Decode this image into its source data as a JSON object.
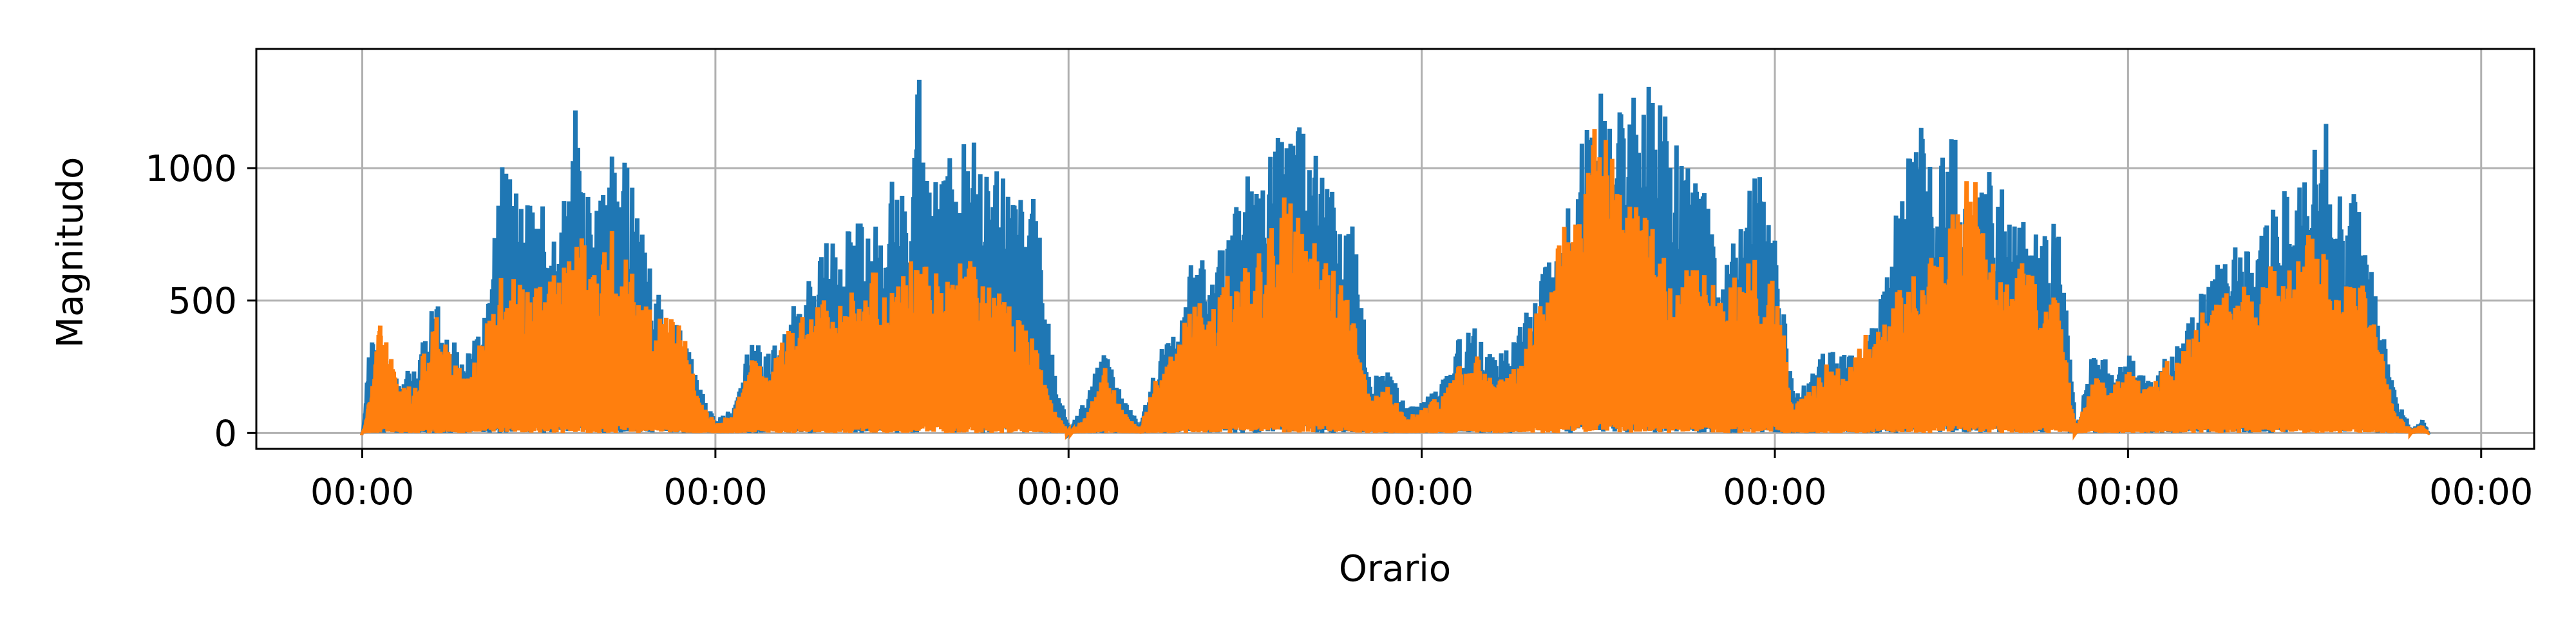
{
  "chart_data": {
    "type": "line",
    "xlabel": "Orario",
    "ylabel": "Magnitudo",
    "x_tick_labels": [
      "00:00",
      "00:00",
      "00:00",
      "00:00",
      "00:00",
      "00:00",
      "00:00"
    ],
    "y_ticks": [
      0,
      500,
      1000
    ],
    "y_tick_labels": [
      "0",
      "500",
      "1000"
    ],
    "xlim": [
      -0.3,
      6.15
    ],
    "ylim": [
      -60,
      1450
    ],
    "grid": true,
    "legend": "none",
    "colors": {
      "series_1": "#1f77b4",
      "series_2": "#ff7f0e"
    },
    "series": [
      {
        "color": "#1f77b4",
        "points": [
          [
            0.0,
            0
          ],
          [
            0.02,
            400
          ],
          [
            0.05,
            300
          ],
          [
            0.1,
            210
          ],
          [
            0.15,
            260
          ],
          [
            0.2,
            520
          ],
          [
            0.25,
            350
          ],
          [
            0.3,
            300
          ],
          [
            0.35,
            480
          ],
          [
            0.4,
            1100
          ],
          [
            0.45,
            850
          ],
          [
            0.5,
            900
          ],
          [
            0.55,
            700
          ],
          [
            0.6,
            1230
          ],
          [
            0.65,
            800
          ],
          [
            0.7,
            1050
          ],
          [
            0.75,
            1080
          ],
          [
            0.8,
            700
          ],
          [
            0.85,
            500
          ],
          [
            0.9,
            420
          ],
          [
            0.95,
            180
          ],
          [
            1.0,
            50
          ],
          [
            1.05,
            100
          ],
          [
            1.1,
            380
          ],
          [
            1.15,
            300
          ],
          [
            1.2,
            450
          ],
          [
            1.25,
            550
          ],
          [
            1.3,
            750
          ],
          [
            1.35,
            720
          ],
          [
            1.4,
            820
          ],
          [
            1.45,
            780
          ],
          [
            1.5,
            1000
          ],
          [
            1.55,
            800
          ],
          [
            1.57,
            1400
          ],
          [
            1.62,
            950
          ],
          [
            1.7,
            1150
          ],
          [
            1.75,
            1060
          ],
          [
            1.8,
            980
          ],
          [
            1.85,
            900
          ],
          [
            1.9,
            920
          ],
          [
            1.95,
            300
          ],
          [
            2.0,
            10
          ],
          [
            2.05,
            150
          ],
          [
            2.1,
            330
          ],
          [
            2.15,
            130
          ],
          [
            2.2,
            30
          ],
          [
            2.25,
            300
          ],
          [
            2.3,
            390
          ],
          [
            2.35,
            740
          ],
          [
            2.4,
            600
          ],
          [
            2.45,
            850
          ],
          [
            2.5,
            1000
          ],
          [
            2.55,
            1100
          ],
          [
            2.6,
            1220
          ],
          [
            2.65,
            1260
          ],
          [
            2.7,
            1100
          ],
          [
            2.75,
            880
          ],
          [
            2.8,
            850
          ],
          [
            2.85,
            200
          ],
          [
            2.9,
            260
          ],
          [
            2.95,
            100
          ],
          [
            3.0,
            120
          ],
          [
            3.05,
            200
          ],
          [
            3.1,
            360
          ],
          [
            3.15,
            400
          ],
          [
            3.2,
            280
          ],
          [
            3.25,
            330
          ],
          [
            3.3,
            530
          ],
          [
            3.35,
            640
          ],
          [
            3.4,
            780
          ],
          [
            3.45,
            1100
          ],
          [
            3.5,
            1300
          ],
          [
            3.55,
            1280
          ],
          [
            3.6,
            1390
          ],
          [
            3.65,
            1300
          ],
          [
            3.7,
            1200
          ],
          [
            3.75,
            1030
          ],
          [
            3.8,
            900
          ],
          [
            3.85,
            620
          ],
          [
            3.9,
            860
          ],
          [
            3.95,
            1000
          ],
          [
            4.0,
            800
          ],
          [
            4.05,
            160
          ],
          [
            4.1,
            220
          ],
          [
            4.15,
            350
          ],
          [
            4.2,
            290
          ],
          [
            4.25,
            330
          ],
          [
            4.3,
            540
          ],
          [
            4.35,
            900
          ],
          [
            4.4,
            1250
          ],
          [
            4.45,
            950
          ],
          [
            4.5,
            1200
          ],
          [
            4.55,
            850
          ],
          [
            4.6,
            1000
          ],
          [
            4.65,
            900
          ],
          [
            4.7,
            850
          ],
          [
            4.75,
            730
          ],
          [
            4.8,
            830
          ],
          [
            4.85,
            10
          ],
          [
            4.9,
            330
          ],
          [
            4.95,
            260
          ],
          [
            5.0,
            300
          ],
          [
            5.05,
            200
          ],
          [
            5.1,
            280
          ],
          [
            5.15,
            360
          ],
          [
            5.2,
            520
          ],
          [
            5.25,
            650
          ],
          [
            5.3,
            720
          ],
          [
            5.35,
            700
          ],
          [
            5.4,
            880
          ],
          [
            5.45,
            940
          ],
          [
            5.5,
            1000
          ],
          [
            5.55,
            1220
          ],
          [
            5.6,
            950
          ],
          [
            5.65,
            920
          ],
          [
            5.7,
            500
          ],
          [
            5.75,
            170
          ],
          [
            5.8,
            10
          ],
          [
            5.83,
            50
          ],
          [
            5.85,
            0
          ]
        ]
      },
      {
        "color": "#ff7f0e",
        "points": [
          [
            0.0,
            0
          ],
          [
            0.03,
            220
          ],
          [
            0.05,
            470
          ],
          [
            0.1,
            160
          ],
          [
            0.15,
            200
          ],
          [
            0.2,
            470
          ],
          [
            0.25,
            300
          ],
          [
            0.3,
            220
          ],
          [
            0.35,
            420
          ],
          [
            0.4,
            630
          ],
          [
            0.45,
            550
          ],
          [
            0.5,
            560
          ],
          [
            0.55,
            610
          ],
          [
            0.6,
            820
          ],
          [
            0.65,
            660
          ],
          [
            0.7,
            820
          ],
          [
            0.75,
            640
          ],
          [
            0.8,
            500
          ],
          [
            0.85,
            450
          ],
          [
            0.9,
            420
          ],
          [
            0.95,
            120
          ],
          [
            1.0,
            40
          ],
          [
            1.05,
            80
          ],
          [
            1.1,
            310
          ],
          [
            1.15,
            220
          ],
          [
            1.2,
            400
          ],
          [
            1.25,
            470
          ],
          [
            1.3,
            510
          ],
          [
            1.35,
            520
          ],
          [
            1.4,
            540
          ],
          [
            1.45,
            620
          ],
          [
            1.5,
            540
          ],
          [
            1.55,
            660
          ],
          [
            1.6,
            650
          ],
          [
            1.65,
            580
          ],
          [
            1.7,
            750
          ],
          [
            1.75,
            630
          ],
          [
            1.8,
            560
          ],
          [
            1.85,
            470
          ],
          [
            1.9,
            350
          ],
          [
            1.95,
            100
          ],
          [
            2.0,
            0
          ],
          [
            2.05,
            70
          ],
          [
            2.1,
            250
          ],
          [
            2.15,
            80
          ],
          [
            2.2,
            20
          ],
          [
            2.25,
            230
          ],
          [
            2.3,
            330
          ],
          [
            2.35,
            520
          ],
          [
            2.4,
            460
          ],
          [
            2.45,
            620
          ],
          [
            2.5,
            650
          ],
          [
            2.55,
            720
          ],
          [
            2.6,
            900
          ],
          [
            2.65,
            850
          ],
          [
            2.7,
            700
          ],
          [
            2.75,
            640
          ],
          [
            2.8,
            470
          ],
          [
            2.85,
            130
          ],
          [
            2.9,
            180
          ],
          [
            2.95,
            60
          ],
          [
            3.0,
            90
          ],
          [
            3.05,
            150
          ],
          [
            3.1,
            260
          ],
          [
            3.15,
            300
          ],
          [
            3.2,
            210
          ],
          [
            3.25,
            230
          ],
          [
            3.3,
            410
          ],
          [
            3.35,
            520
          ],
          [
            3.4,
            800
          ],
          [
            3.45,
            860
          ],
          [
            3.5,
            1330
          ],
          [
            3.55,
            950
          ],
          [
            3.6,
            880
          ],
          [
            3.65,
            780
          ],
          [
            3.7,
            600
          ],
          [
            3.75,
            620
          ],
          [
            3.8,
            700
          ],
          [
            3.85,
            480
          ],
          [
            3.9,
            650
          ],
          [
            3.95,
            660
          ],
          [
            4.0,
            570
          ],
          [
            4.05,
            100
          ],
          [
            4.1,
            170
          ],
          [
            4.15,
            280
          ],
          [
            4.2,
            220
          ],
          [
            4.25,
            370
          ],
          [
            4.3,
            430
          ],
          [
            4.35,
            560
          ],
          [
            4.4,
            640
          ],
          [
            4.45,
            670
          ],
          [
            4.5,
            880
          ],
          [
            4.55,
            1060
          ],
          [
            4.6,
            700
          ],
          [
            4.65,
            560
          ],
          [
            4.7,
            660
          ],
          [
            4.75,
            560
          ],
          [
            4.8,
            500
          ],
          [
            4.85,
            10
          ],
          [
            4.9,
            220
          ],
          [
            4.95,
            170
          ],
          [
            5.0,
            240
          ],
          [
            5.05,
            160
          ],
          [
            5.1,
            290
          ],
          [
            5.15,
            300
          ],
          [
            5.2,
            460
          ],
          [
            5.25,
            520
          ],
          [
            5.3,
            570
          ],
          [
            5.35,
            600
          ],
          [
            5.4,
            640
          ],
          [
            5.45,
            660
          ],
          [
            5.5,
            770
          ],
          [
            5.55,
            680
          ],
          [
            5.6,
            600
          ],
          [
            5.65,
            610
          ],
          [
            5.7,
            390
          ],
          [
            5.75,
            80
          ],
          [
            5.8,
            10
          ],
          [
            5.83,
            30
          ],
          [
            5.85,
            0
          ]
        ]
      }
    ]
  }
}
